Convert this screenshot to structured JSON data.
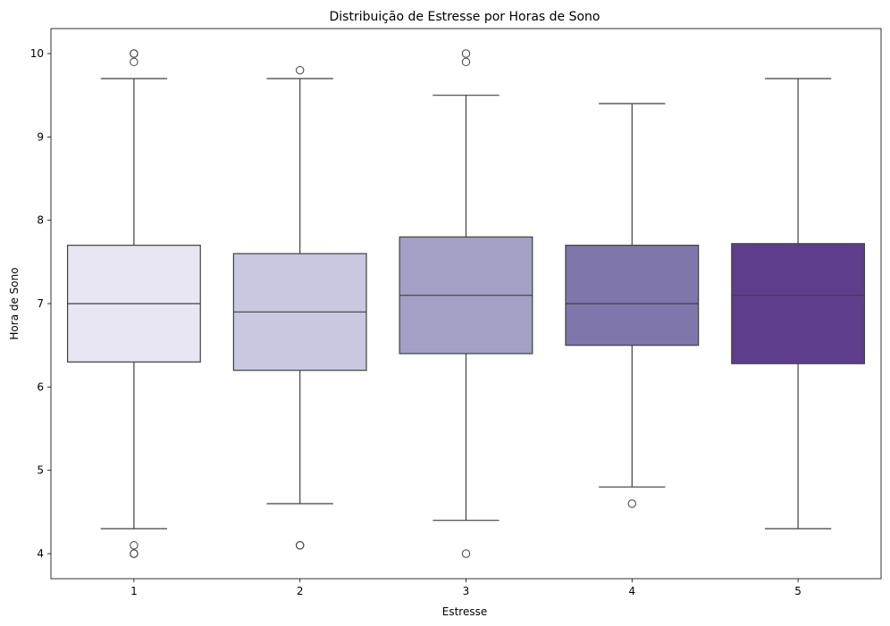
{
  "chart_data": {
    "type": "boxplot",
    "title": "Distribuição de Estresse por Horas de Sono",
    "xlabel": "Estresse",
    "ylabel": "Hora de Sono",
    "categories": [
      "1",
      "2",
      "3",
      "4",
      "5"
    ],
    "ylim": [
      3.7,
      10.3
    ],
    "yticks": [
      "4",
      "5",
      "6",
      "7",
      "8",
      "9",
      "10"
    ],
    "boxes": [
      {
        "category": "1",
        "whisker_low": 4.3,
        "q1": 6.3,
        "median": 7.0,
        "q3": 7.7,
        "whisker_high": 9.7,
        "outliers": [
          4.0,
          4.0,
          4.1,
          9.9,
          10.0,
          10.0
        ],
        "color": "#e8e6f2"
      },
      {
        "category": "2",
        "whisker_low": 4.6,
        "q1": 6.2,
        "median": 6.9,
        "q3": 7.6,
        "whisker_high": 9.7,
        "outliers": [
          4.1,
          4.1,
          9.8
        ],
        "color": "#c8c9e0"
      },
      {
        "category": "3",
        "whisker_low": 4.4,
        "q1": 6.4,
        "median": 7.1,
        "q3": 7.8,
        "whisker_high": 9.5,
        "outliers": [
          4.0,
          9.9,
          10.0
        ],
        "color": "#a3a0c5"
      },
      {
        "category": "4",
        "whisker_low": 4.8,
        "q1": 6.5,
        "median": 7.0,
        "q3": 7.7,
        "whisker_high": 9.4,
        "outliers": [
          4.6
        ],
        "color": "#7f77ab"
      },
      {
        "category": "5",
        "whisker_low": 4.3,
        "q1": 6.28,
        "median": 7.1,
        "q3": 7.72,
        "whisker_high": 9.7,
        "outliers": [],
        "color": "#5e3e8c"
      }
    ],
    "grid": false,
    "line_color": "#3f3f3f"
  }
}
